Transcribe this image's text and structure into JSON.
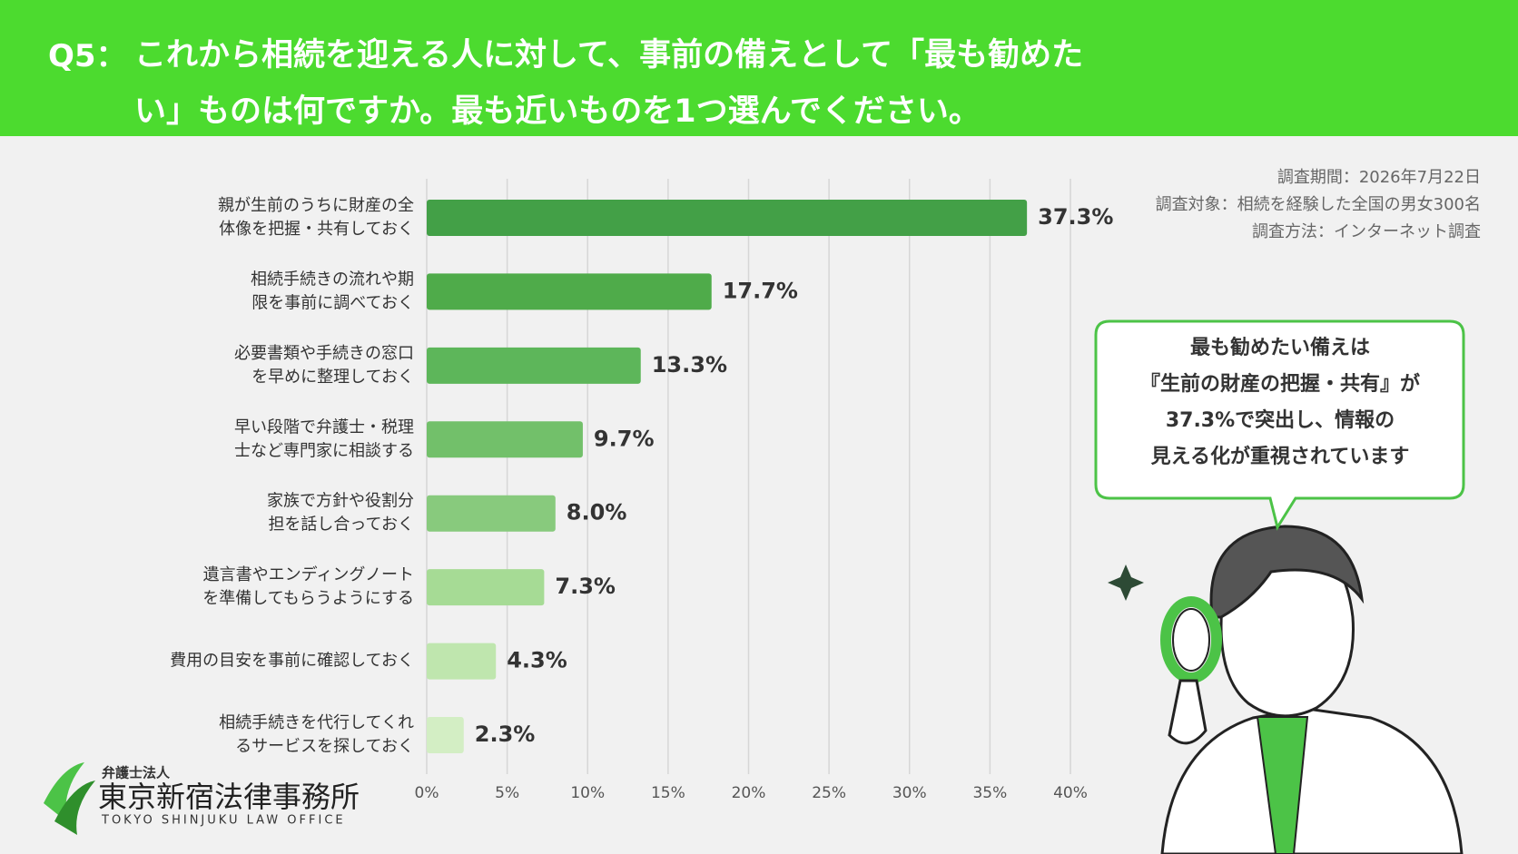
{
  "chart_data": {
    "type": "bar",
    "orientation": "horizontal",
    "question_label": "Q5：",
    "title": "これから相続を迎える人に対して、事前の備えとして「最も勧めたい」ものは何ですか。最も近いものを1つ選んでください。",
    "notes": [
      "調査期間：2026年7月22日",
      "調査対象：相続を経験した全国の男女300名",
      "調査方法：インターネット調査"
    ],
    "categories": [
      "親が生前のうちに財産の全\n体像を把握・共有しておく",
      "相続手続きの流れや期\n限を事前に調べておく",
      "必要書類や手続きの窓口\nを早めに整理しておく",
      "早い段階で弁護士・税理\n士など専門家に相談する",
      "家族で方針や役割分\n担を話し合っておく",
      "遺言書やエンディングノート\nを準備してもらうようにする",
      "費用の目安を事前に確認しておく",
      "相続手続きを代行してくれ\nるサービスを探しておく"
    ],
    "values": [
      37.3,
      17.7,
      13.3,
      9.7,
      8.0,
      7.3,
      4.3,
      2.3
    ],
    "value_labels": [
      "37.3%",
      "17.7%",
      "13.3%",
      "9.7%",
      "8.0%",
      "7.3%",
      "4.3%",
      "2.3%"
    ],
    "colors": [
      "#43a047",
      "#4fab4a",
      "#5db65a",
      "#72c06a",
      "#88ca7d",
      "#a6db95",
      "#bfe6ae",
      "#d3eec4"
    ],
    "xlim": [
      0,
      40
    ],
    "xticks": [
      {
        "value": 0,
        "label": "0%"
      },
      {
        "value": 5,
        "label": "5%"
      },
      {
        "value": 10,
        "label": "10%"
      },
      {
        "value": 15,
        "label": "15%"
      },
      {
        "value": 20,
        "label": "20%"
      },
      {
        "value": 25,
        "label": "25%"
      },
      {
        "value": 30,
        "label": "30%"
      },
      {
        "value": 35,
        "label": "35%"
      },
      {
        "value": 40,
        "label": "40%"
      }
    ],
    "grid": true,
    "callout": [
      "最も勧めたい備えは",
      "『生前の財産の把握・共有』が",
      "37.3%で突出し、情報の",
      "見える化が重視されています"
    ],
    "logo": {
      "sub": "弁護士法人",
      "name": "東京新宿法律事務所",
      "english": "TOKYO SHINJUKU LAW OFFICE"
    }
  }
}
